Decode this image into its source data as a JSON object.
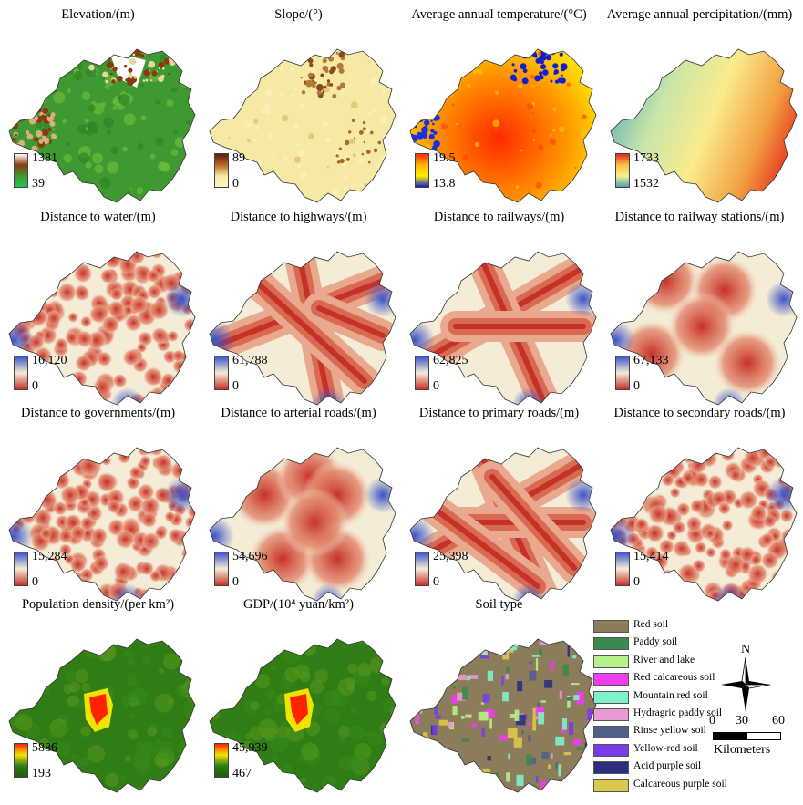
{
  "panels": [
    {
      "id": "elevation",
      "title": "Elevation/(m)",
      "max": "1381",
      "min": "39",
      "colors": [
        "#ffffff",
        "#8b3a0f",
        "#3d9a2e",
        "#1fc45a"
      ],
      "style": "elev"
    },
    {
      "id": "slope",
      "title": "Slope/(°)",
      "max": "89",
      "min": "0",
      "colors": [
        "#5e1d08",
        "#b46a24",
        "#f6e9a4",
        "#fdf6c4"
      ],
      "style": "slope"
    },
    {
      "id": "temperature",
      "title": "Average annual temperature/(°C)",
      "max": "19.5",
      "min": "13.8",
      "colors": [
        "#ff2a00",
        "#ffb400",
        "#ffee00",
        "#1020d0"
      ],
      "style": "temp"
    },
    {
      "id": "precipitation",
      "title": "Average annual percipitation/(mm)",
      "max": "1733",
      "min": "1532",
      "colors": [
        "#e5261a",
        "#f7c244",
        "#f9ef8c",
        "#4aa0b8"
      ],
      "style": "precip"
    },
    {
      "id": "dist_water",
      "title": "Distance to water/(m)",
      "max": "16,120",
      "min": "0",
      "colors": [
        "#3a54c8",
        "#f4ecd6",
        "#c6302a"
      ],
      "style": "dist"
    },
    {
      "id": "dist_highways",
      "title": "Distance to highways/(m)",
      "max": "61,788",
      "min": "0",
      "colors": [
        "#3a54c8",
        "#f4ecd6",
        "#c6302a"
      ],
      "style": "dist"
    },
    {
      "id": "dist_railways",
      "title": "Distance to railways/(m)",
      "max": "62,825",
      "min": "0",
      "colors": [
        "#3a54c8",
        "#f4ecd6",
        "#c6302a"
      ],
      "style": "dist"
    },
    {
      "id": "dist_stations",
      "title": "Distance to railway stations/(m)",
      "max": "67,133",
      "min": "0",
      "colors": [
        "#3a54c8",
        "#f4ecd6",
        "#c6302a"
      ],
      "style": "dist"
    },
    {
      "id": "dist_governments",
      "title": "Distance to governments/(m)",
      "max": "15,284",
      "min": "0",
      "colors": [
        "#3a54c8",
        "#f4ecd6",
        "#c6302a"
      ],
      "style": "dist"
    },
    {
      "id": "dist_arterial",
      "title": "Distance to arterial roads/(m)",
      "max": "54,696",
      "min": "0",
      "colors": [
        "#3a54c8",
        "#f4ecd6",
        "#c6302a"
      ],
      "style": "dist"
    },
    {
      "id": "dist_primary",
      "title": "Distance to primary roads/(m)",
      "max": "25,398",
      "min": "0",
      "colors": [
        "#3a54c8",
        "#f4ecd6",
        "#c6302a"
      ],
      "style": "dist"
    },
    {
      "id": "dist_secondary",
      "title": "Distance to secondary roads/(m)",
      "max": "15,414",
      "min": "0",
      "colors": [
        "#3a54c8",
        "#f4ecd6",
        "#c6302a"
      ],
      "style": "dist"
    },
    {
      "id": "population",
      "title": "Population density/(per km²)",
      "max": "5886",
      "min": "193",
      "colors": [
        "#ff2200",
        "#f2e400",
        "#2f7d14",
        "#1e5c0a"
      ],
      "style": "pop"
    },
    {
      "id": "gdp",
      "title": "GDP/(10⁴ yuan/km²)",
      "max": "45,939",
      "min": "467",
      "colors": [
        "#ff2200",
        "#f2e400",
        "#2f7d14",
        "#1e5c0a"
      ],
      "style": "pop"
    },
    {
      "id": "soil",
      "title": "Soil type",
      "style": "soil"
    }
  ],
  "soil_legend": [
    {
      "label": "Red soil",
      "color": "#8b7d5a"
    },
    {
      "label": "Paddy soil",
      "color": "#3a8a4e"
    },
    {
      "label": "River and lake",
      "color": "#b6f28a"
    },
    {
      "label": "Red calcareous soil",
      "color": "#f03cf0"
    },
    {
      "label": "Mountain red soil",
      "color": "#7ff0cc"
    },
    {
      "label": "Hydragric paddy soil",
      "color": "#e99ad0"
    },
    {
      "label": "Rinse yellow soil",
      "color": "#51608a"
    },
    {
      "label": "Yellow-red soil",
      "color": "#7a3ce8"
    },
    {
      "label": "Acid purple soil",
      "color": "#2e2e7e"
    },
    {
      "label": "Calcareous purple soil",
      "color": "#dcc84a"
    }
  ],
  "north_arrow": {
    "label": "N"
  },
  "scale_bar": {
    "ticks": [
      "0",
      "30",
      "60"
    ],
    "unit": "Kilometers"
  }
}
